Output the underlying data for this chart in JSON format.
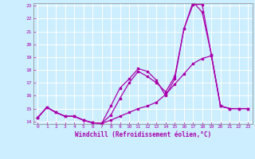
{
  "xlabel": "Windchill (Refroidissement éolien,°C)",
  "xlim": [
    -0.5,
    23.5
  ],
  "ylim": [
    13.8,
    23.2
  ],
  "yticks": [
    14,
    15,
    16,
    17,
    18,
    19,
    20,
    21,
    22,
    23
  ],
  "xticks": [
    0,
    1,
    2,
    3,
    4,
    5,
    6,
    7,
    8,
    9,
    10,
    11,
    12,
    13,
    14,
    15,
    16,
    17,
    18,
    19,
    20,
    21,
    22,
    23
  ],
  "bg_color": "#cceeff",
  "line_color": "#aa00aa",
  "grid_color": "#ffffff",
  "line1_x": [
    0,
    1,
    2,
    3,
    4,
    5,
    6,
    7,
    8,
    9,
    10,
    11,
    12,
    13,
    14,
    15,
    16,
    17,
    18,
    19,
    20,
    21,
    22,
    23
  ],
  "line1_y": [
    14.3,
    15.1,
    14.7,
    14.4,
    14.4,
    14.1,
    13.9,
    13.85,
    15.2,
    16.6,
    17.3,
    18.1,
    17.9,
    17.2,
    16.0,
    17.3,
    21.2,
    23.1,
    23.1,
    19.2,
    15.2,
    15.0,
    15.0,
    15.0
  ],
  "line2_x": [
    0,
    1,
    2,
    3,
    4,
    5,
    6,
    7,
    8,
    9,
    10,
    11,
    12,
    13,
    14,
    15,
    16,
    17,
    18,
    19,
    20,
    21,
    22,
    23
  ],
  "line2_y": [
    14.3,
    15.1,
    14.7,
    14.4,
    14.4,
    14.1,
    13.9,
    13.85,
    14.1,
    14.4,
    14.7,
    15.0,
    15.2,
    15.5,
    16.1,
    16.9,
    17.7,
    18.5,
    18.9,
    19.1,
    15.2,
    15.0,
    15.0,
    15.0
  ],
  "line3_x": [
    0,
    1,
    2,
    3,
    4,
    5,
    6,
    7,
    8,
    9,
    10,
    11,
    12,
    13,
    14,
    15,
    16,
    17,
    18,
    19,
    20,
    21,
    22,
    23
  ],
  "line3_y": [
    14.3,
    15.1,
    14.7,
    14.4,
    14.4,
    14.1,
    13.9,
    13.85,
    14.5,
    15.8,
    17.0,
    17.9,
    17.5,
    17.0,
    16.3,
    17.5,
    21.2,
    23.3,
    22.5,
    19.2,
    15.2,
    15.0,
    15.0,
    15.0
  ]
}
